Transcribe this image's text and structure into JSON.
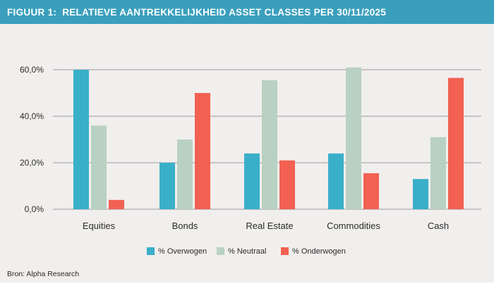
{
  "header": {
    "prefix": "FIGUUR 1:",
    "title": "RELATIEVE AANTREKKELIJKHEID ASSET CLASSES PER 30/11/2025"
  },
  "source": "Bron: Alpha Research",
  "colors": {
    "header_bg": "#3a9fbd",
    "background": "#f1efed",
    "overwogen": "#3aafc9",
    "neutraal": "#b9d1c2",
    "onderwogen": "#f26152"
  },
  "chart_data": {
    "type": "bar",
    "categories": [
      "Equities",
      "Bonds",
      "Real Estate",
      "Commodities",
      "Cash"
    ],
    "series": [
      {
        "name": "% Overwogen",
        "color": "#3aafc9",
        "values": [
          60,
          20,
          24,
          24,
          13
        ]
      },
      {
        "name": "% Neutraal",
        "color": "#b9d1c2",
        "values": [
          36,
          30,
          55.5,
          61,
          31
        ]
      },
      {
        "name": "% Onderwogen",
        "color": "#f26152",
        "values": [
          4,
          50,
          21,
          15.5,
          56.5
        ]
      }
    ],
    "yticks": [
      0,
      20,
      40,
      60
    ],
    "ytick_labels": [
      "0,0%",
      "20,0%",
      "40,0%",
      "60,0%"
    ],
    "ylim": [
      0,
      60
    ],
    "grid": true,
    "legend": "bottom-center",
    "title": "",
    "xlabel": "",
    "ylabel": ""
  }
}
